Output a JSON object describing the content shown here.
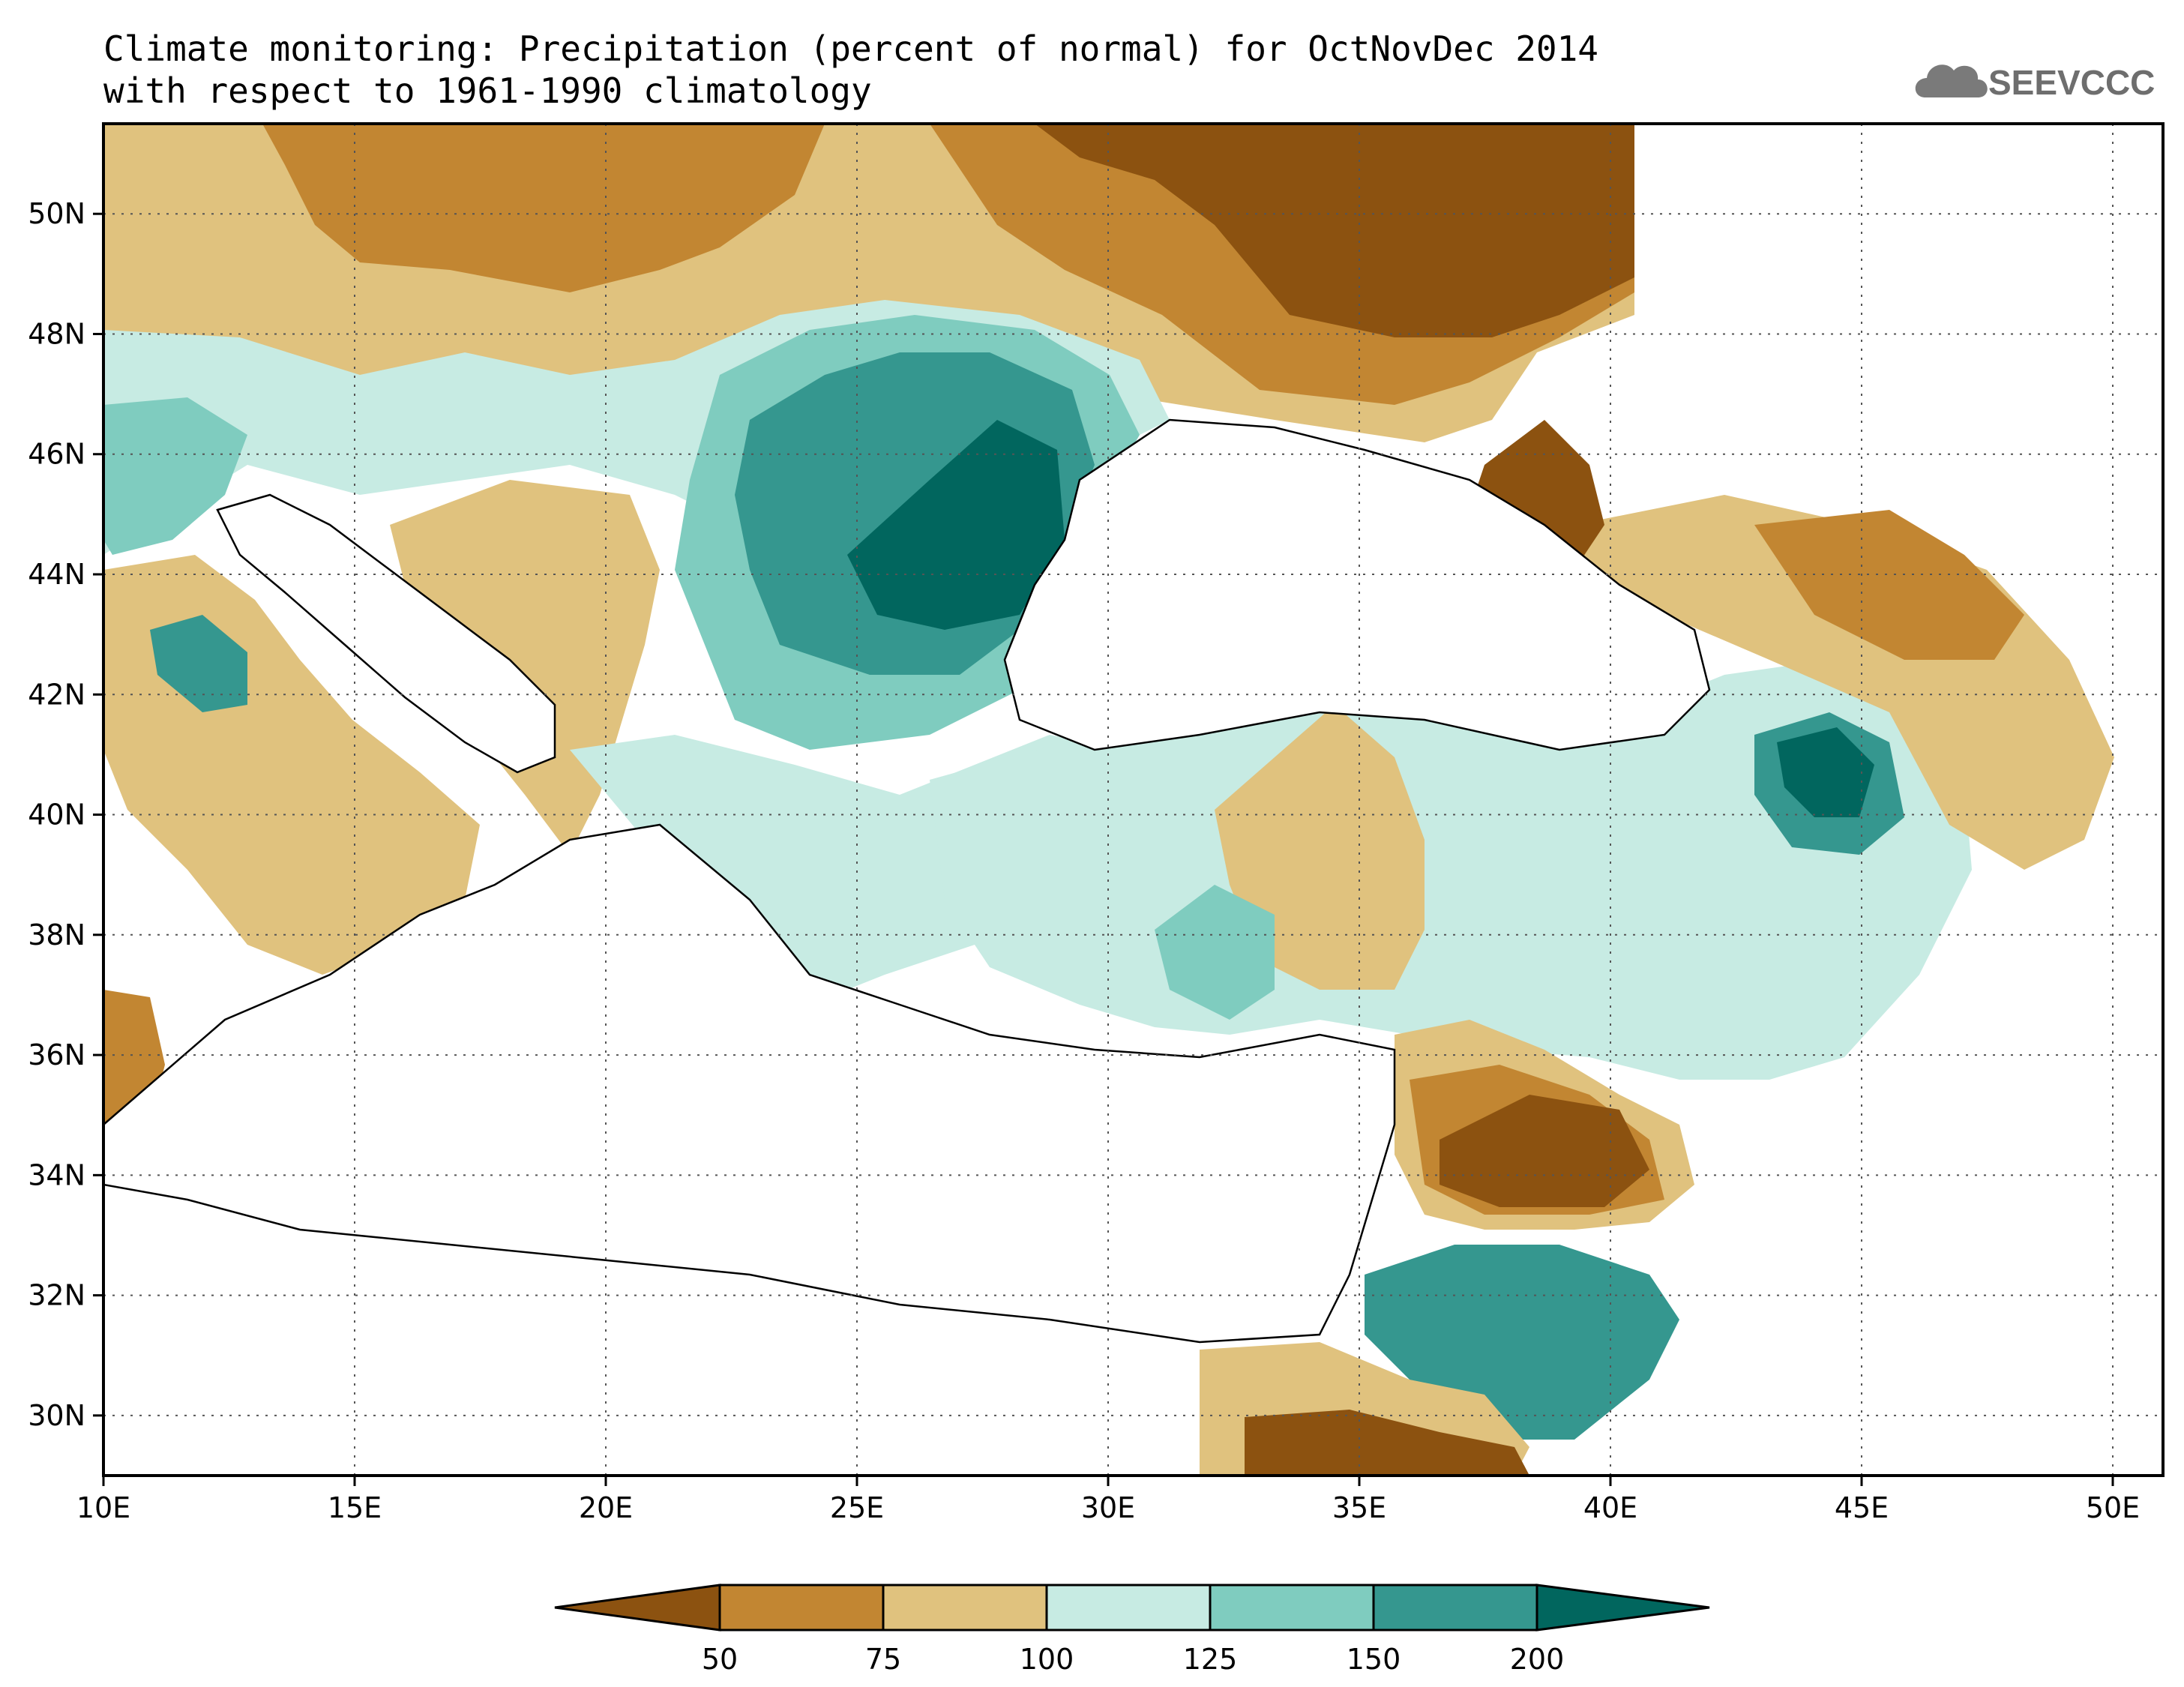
{
  "header": {
    "title_line1": "Climate monitoring: Precipitation (percent of normal) for OctNovDec 2014",
    "title_line2": "with respect to 1961-1990 climatology",
    "logo_text": "SEEVCCC"
  },
  "map": {
    "lon_range": [
      10,
      51
    ],
    "lat_range": [
      29,
      51.5
    ],
    "lon_ticks": [
      {
        "v": 10,
        "label": "10E"
      },
      {
        "v": 15,
        "label": "15E"
      },
      {
        "v": 20,
        "label": "20E"
      },
      {
        "v": 25,
        "label": "25E"
      },
      {
        "v": 30,
        "label": "30E"
      },
      {
        "v": 35,
        "label": "35E"
      },
      {
        "v": 40,
        "label": "40E"
      },
      {
        "v": 45,
        "label": "45E"
      },
      {
        "v": 50,
        "label": "50E"
      }
    ],
    "lat_ticks": [
      {
        "v": 30,
        "label": "30N"
      },
      {
        "v": 32,
        "label": "32N"
      },
      {
        "v": 34,
        "label": "34N"
      },
      {
        "v": 36,
        "label": "36N"
      },
      {
        "v": 38,
        "label": "38N"
      },
      {
        "v": 40,
        "label": "40N"
      },
      {
        "v": 42,
        "label": "42N"
      },
      {
        "v": 44,
        "label": "44N"
      },
      {
        "v": 46,
        "label": "46N"
      },
      {
        "v": 48,
        "label": "48N"
      },
      {
        "v": 50,
        "label": "50N"
      }
    ]
  },
  "legend": {
    "labels": [
      "50",
      "75",
      "100",
      "125",
      "150",
      "200"
    ],
    "colors": [
      "#8c5210",
      "#c28632",
      "#e0c27e",
      "#c7ebe3",
      "#7fccbf",
      "#35978f",
      "#01665e"
    ]
  }
}
